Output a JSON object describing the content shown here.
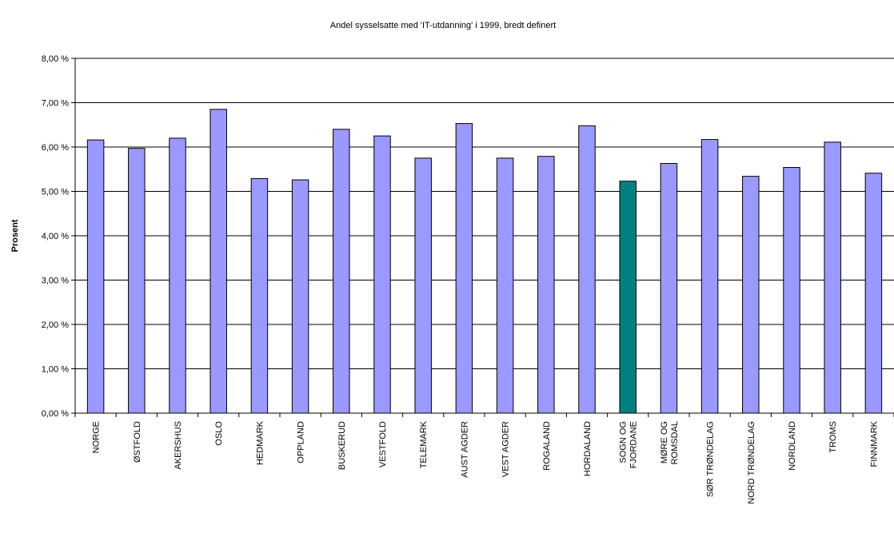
{
  "chart_data": {
    "type": "bar",
    "title": "Andel sysselsatte med 'IT-utdanning' i 1999, bredt definert",
    "xlabel": "",
    "ylabel": "Prosent",
    "ylim": [
      0,
      8
    ],
    "y_ticks": [
      {
        "value": 0,
        "label": "0,00 %"
      },
      {
        "value": 1,
        "label": "1,00 %"
      },
      {
        "value": 2,
        "label": "2,00 %"
      },
      {
        "value": 3,
        "label": "3,00 %"
      },
      {
        "value": 4,
        "label": "4,00 %"
      },
      {
        "value": 5,
        "label": "5,00 %"
      },
      {
        "value": 6,
        "label": "6,00 %"
      },
      {
        "value": 7,
        "label": "7,00 %"
      },
      {
        "value": 8,
        "label": "8,00 %"
      }
    ],
    "grid": true,
    "legend": "none",
    "categories": [
      "NORGE",
      "ØSTFOLD",
      "AKERSHUS",
      "OSLO",
      "HEDMARK",
      "OPPLAND",
      "BUSKERUD",
      "VESTFOLD",
      "TELEMARK",
      "AUST AGDER",
      "VEST AGDER",
      "ROGALAND",
      "HORDALAND",
      "SOGN OG FJORDANE",
      "MØRE OG ROMSDAL",
      "SØR TRØNDELAG",
      "NORD TRØNDELAG",
      "NORDLAND",
      "TROMS",
      "FINNMARK"
    ],
    "category_label_lines": [
      [
        "NORGE"
      ],
      [
        "ØSTFOLD"
      ],
      [
        "AKERSHUS"
      ],
      [
        "OSLO"
      ],
      [
        "HEDMARK"
      ],
      [
        "OPPLAND"
      ],
      [
        "BUSKERUD"
      ],
      [
        "VESTFOLD"
      ],
      [
        "TELEMARK"
      ],
      [
        "AUST AGDER"
      ],
      [
        "VEST AGDER"
      ],
      [
        "ROGALAND"
      ],
      [
        "HORDALAND"
      ],
      [
        "SOGN OG",
        "FJORDANE"
      ],
      [
        "MØRE OG",
        "ROMSDAL"
      ],
      [
        "SØR TRØNDELAG"
      ],
      [
        "NORD TRØNDELAG"
      ],
      [
        "NORDLAND"
      ],
      [
        "TROMS"
      ],
      [
        "FINNMARK"
      ]
    ],
    "values": [
      6.16,
      5.97,
      6.2,
      6.85,
      5.29,
      5.26,
      6.4,
      6.25,
      5.75,
      6.53,
      5.75,
      5.79,
      6.48,
      5.23,
      5.63,
      6.17,
      5.34,
      5.54,
      6.11,
      5.41
    ],
    "highlight_category": "SOGN OG FJORDANE",
    "colors": {
      "bar": "#9999ff",
      "highlight": "#008080",
      "bar_border": "#000000",
      "gridline": "#000000"
    }
  }
}
